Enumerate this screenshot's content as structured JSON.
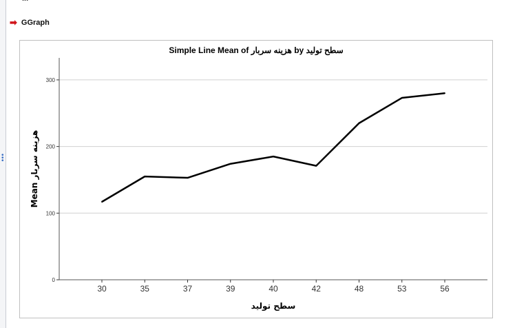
{
  "viewer": {
    "previous_item": "...",
    "node_label": "GGraph",
    "node_icon": "red-arrow-icon"
  },
  "chart_data": {
    "type": "line",
    "title": "Simple Line Mean of هزینه سربار by سطح تولید",
    "xlabel": "سطح تولید",
    "ylabel": "Mean هزینه سربار",
    "categories": [
      "30",
      "35",
      "37",
      "39",
      "40",
      "42",
      "48",
      "53",
      "56"
    ],
    "values": [
      117,
      155,
      153,
      174,
      185,
      171,
      235,
      273,
      280
    ],
    "yticks": [
      0,
      100,
      200,
      300
    ],
    "ylim": [
      0,
      333
    ],
    "grid": "horizontal",
    "line_color": "#000000"
  }
}
